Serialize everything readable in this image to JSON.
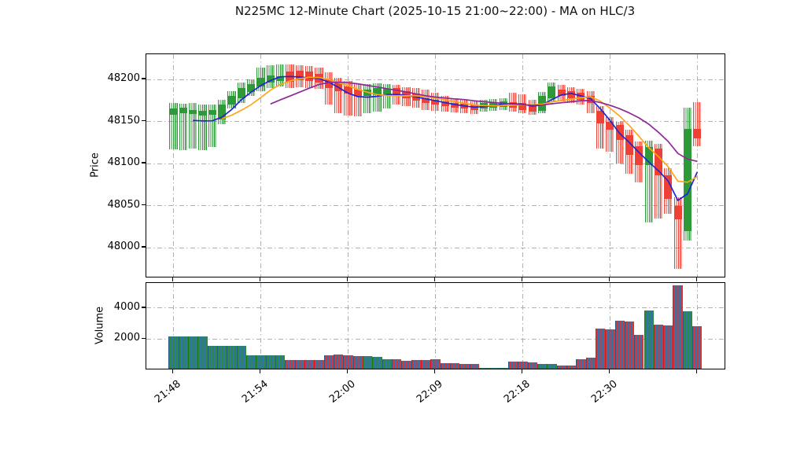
{
  "title": "N225MC 12-Minute Chart (2025-10-15 21:00~22:00) - MA on HLC/3",
  "price_axis": {
    "label": "Price",
    "ticks": [
      48200,
      48150,
      48100,
      48050,
      48000
    ]
  },
  "volume_axis": {
    "label": "Volume",
    "ticks": [
      4000,
      2000
    ]
  },
  "x_axis": {
    "ticks": [
      {
        "index": 0,
        "label": "21:48"
      },
      {
        "index": 9,
        "label": "21:54"
      },
      {
        "index": 18,
        "label": "22:00"
      },
      {
        "index": 27,
        "label": "22:09"
      },
      {
        "index": 36,
        "label": "22:18"
      },
      {
        "index": 45,
        "label": "22:30"
      },
      {
        "index": 54,
        "label": ""
      }
    ]
  },
  "colors": {
    "up": "#2e9939",
    "down": "#ee4135",
    "volume_fill": "#2f74ad",
    "volume_up_hatch": "#2e8b3a",
    "volume_down_hatch": "#d63638",
    "ma_fast": "#2323d6",
    "ma_mid": "#ffa517",
    "ma_slow": "#8d2a96",
    "grid": "#b1b1b1"
  },
  "chart_data": {
    "type": "candlestick+volume",
    "title": "N225MC 12-Minute Chart (2025-10-15 21:00~22:00) - MA on HLC/3",
    "ylabel_price": "Price",
    "ylabel_volume": "Volume",
    "price_ylim": [
      47963,
      48230
    ],
    "volume_ylim": [
      0,
      5617
    ],
    "grid": "dash-dot",
    "ma_lines": [
      {
        "name": "MA fast on HLC/3",
        "window": 3,
        "color": "#2323d6"
      },
      {
        "name": "MA mid on HLC/3",
        "window": 6,
        "color": "#ffa517"
      },
      {
        "name": "MA slow on HLC/3",
        "window": 11,
        "color": "#8d2a96"
      }
    ],
    "candle_format": [
      "open",
      "high",
      "low",
      "close",
      "volume"
    ],
    "candles": [
      [
        48158,
        48172,
        48117,
        48165,
        2160
      ],
      [
        48160,
        48171,
        48116,
        48166,
        2160
      ],
      [
        48159,
        48172,
        48118,
        48164,
        2160
      ],
      [
        48157,
        48170,
        48116,
        48163,
        2160
      ],
      [
        48158,
        48170,
        48120,
        48164,
        1560
      ],
      [
        48152,
        48176,
        48147,
        48170,
        1560
      ],
      [
        48170,
        48186,
        48165,
        48180,
        1560
      ],
      [
        48178,
        48196,
        48172,
        48190,
        1560
      ],
      [
        48185,
        48200,
        48180,
        48194,
        980
      ],
      [
        48192,
        48214,
        48186,
        48202,
        980
      ],
      [
        48196,
        48217,
        48190,
        48205,
        980
      ],
      [
        48198,
        48218,
        48192,
        48204,
        980
      ],
      [
        48209,
        48218,
        48190,
        48197,
        660
      ],
      [
        48210,
        48217,
        48191,
        48199,
        660
      ],
      [
        48209,
        48216,
        48190,
        48198,
        660
      ],
      [
        48207,
        48214,
        48189,
        48196,
        660
      ],
      [
        48200,
        48208,
        48170,
        48190,
        950
      ],
      [
        48196,
        48202,
        48160,
        48186,
        1000
      ],
      [
        48192,
        48198,
        48157,
        48183,
        950
      ],
      [
        48188,
        48194,
        48156,
        48180,
        900
      ],
      [
        48180,
        48194,
        48160,
        48188,
        900
      ],
      [
        48181,
        48195,
        48162,
        48190,
        880
      ],
      [
        48182,
        48194,
        48165,
        48189,
        720
      ],
      [
        48190,
        48193,
        48170,
        48181,
        700
      ],
      [
        48186,
        48191,
        48168,
        48178,
        620
      ],
      [
        48183,
        48190,
        48166,
        48175,
        650
      ],
      [
        48178,
        48188,
        48164,
        48172,
        640
      ],
      [
        48176,
        48184,
        48163,
        48170,
        700
      ],
      [
        48174,
        48180,
        48162,
        48168,
        480
      ],
      [
        48172,
        48178,
        48161,
        48166,
        440
      ],
      [
        48171,
        48176,
        48160,
        48165,
        430
      ],
      [
        48170,
        48174,
        48159,
        48164,
        400
      ],
      [
        48165,
        48176,
        48162,
        48172,
        160
      ],
      [
        48166,
        48177,
        48163,
        48173,
        150
      ],
      [
        48167,
        48178,
        48164,
        48174,
        160
      ],
      [
        48173,
        48184,
        48162,
        48166,
        540
      ],
      [
        48172,
        48182,
        48160,
        48164,
        540
      ],
      [
        48170,
        48176,
        48158,
        48162,
        520
      ],
      [
        48163,
        48185,
        48160,
        48180,
        390
      ],
      [
        48178,
        48196,
        48174,
        48192,
        380
      ],
      [
        48188,
        48193,
        48174,
        48180,
        290
      ],
      [
        48186,
        48191,
        48172,
        48178,
        300
      ],
      [
        48184,
        48189,
        48170,
        48176,
        700
      ],
      [
        48180,
        48186,
        48160,
        48172,
        820
      ],
      [
        48163,
        48168,
        48118,
        48148,
        2680
      ],
      [
        48150,
        48155,
        48114,
        48140,
        2650
      ],
      [
        48146,
        48150,
        48100,
        48128,
        3170
      ],
      [
        48134,
        48140,
        48088,
        48110,
        3150
      ],
      [
        48121,
        48126,
        48078,
        48098,
        2280
      ],
      [
        48098,
        48127,
        48030,
        48120,
        3870
      ],
      [
        48118,
        48123,
        48035,
        48086,
        2950
      ],
      [
        48086,
        48094,
        48040,
        48058,
        2900
      ],
      [
        48050,
        48060,
        47975,
        48034,
        5450
      ],
      [
        48020,
        48166,
        48008,
        48141,
        3800
      ],
      [
        48141,
        48173,
        48121,
        48130,
        2850
      ]
    ]
  }
}
